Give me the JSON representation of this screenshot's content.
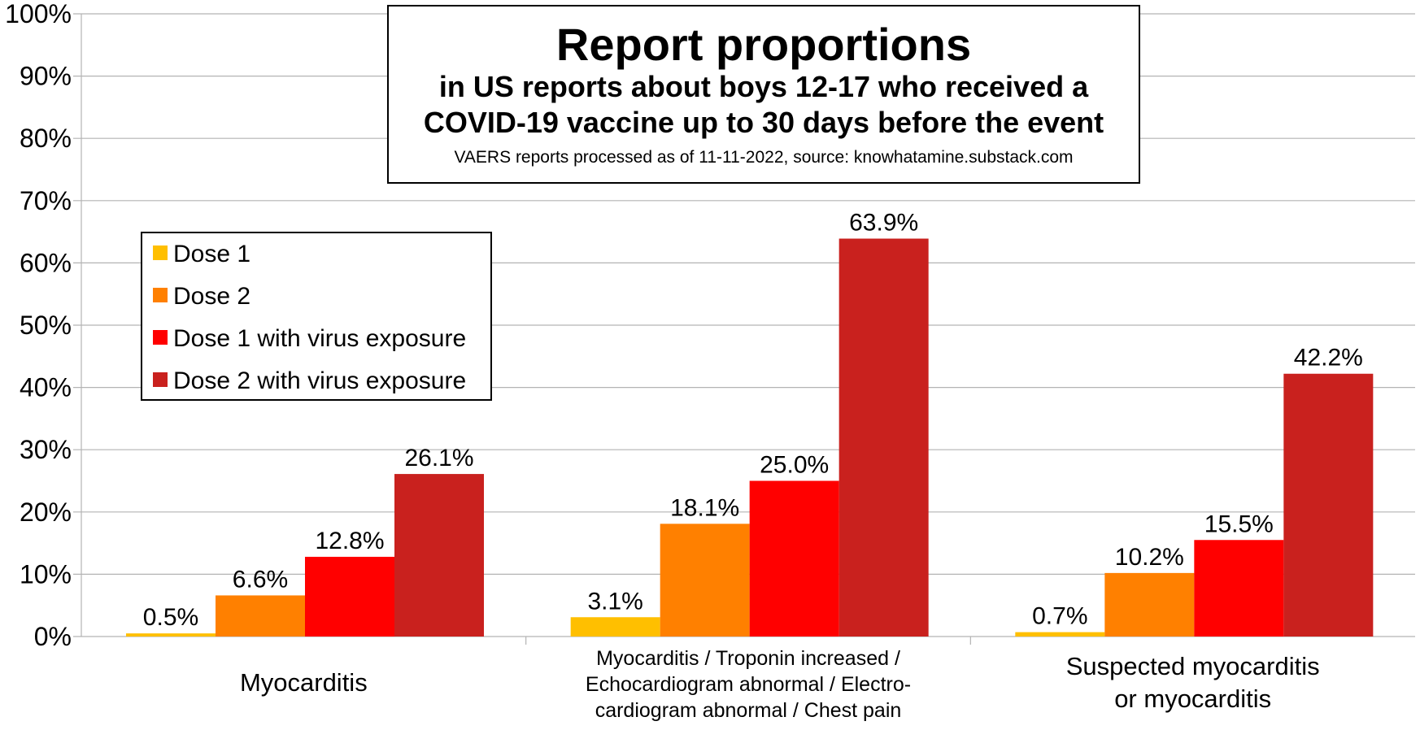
{
  "colors": {
    "series": [
      "#FFBF00",
      "#FF8000",
      "#FF0000",
      "#C9211E"
    ],
    "grid": "#B3B3B3",
    "text": "#000000"
  },
  "chart_data": {
    "type": "bar",
    "title": "Report proportions",
    "subtitle_lines": [
      "in US reports about boys 12-17 who received a",
      "COVID-19 vaccine up to 30 days before the event"
    ],
    "source_note": "VAERS reports processed as of 11-11-2022, source: knowhatamine.substack.com",
    "categories": [
      "Myocarditis",
      "Myocarditis / Troponin increased / Echocardiogram abnormal / Electro-cardiogram abnormal / Chest pain",
      "Suspected myocarditis or myocarditis"
    ],
    "category_label_lines": [
      [
        "Myocarditis"
      ],
      [
        "Myocarditis / Troponin increased /",
        "Echocardiogram abnormal / Electro-",
        "cardiogram abnormal / Chest pain"
      ],
      [
        "Suspected myocarditis",
        "or myocarditis"
      ]
    ],
    "series": [
      {
        "name": "Dose 1",
        "values": [
          0.5,
          3.1,
          0.7
        ],
        "labels": [
          "0.5%",
          "3.1%",
          "0.7%"
        ]
      },
      {
        "name": "Dose 2",
        "values": [
          6.6,
          18.1,
          10.2
        ],
        "labels": [
          "6.6%",
          "18.1%",
          "10.2%"
        ]
      },
      {
        "name": "Dose 1 with virus exposure",
        "values": [
          12.8,
          25.0,
          15.5
        ],
        "labels": [
          "12.8%",
          "25.0%",
          "15.5%"
        ]
      },
      {
        "name": "Dose 2 with virus exposure",
        "values": [
          26.1,
          63.9,
          42.2
        ],
        "labels": [
          "26.1%",
          "63.9%",
          "42.2%"
        ]
      }
    ],
    "ylim": [
      0,
      100
    ],
    "yticks": [
      0,
      10,
      20,
      30,
      40,
      50,
      60,
      70,
      80,
      90,
      100
    ],
    "ytick_labels": [
      "0%",
      "10%",
      "20%",
      "30%",
      "40%",
      "50%",
      "60%",
      "70%",
      "80%",
      "90%",
      "100%"
    ],
    "grid": true,
    "legend_position": "top-left"
  }
}
